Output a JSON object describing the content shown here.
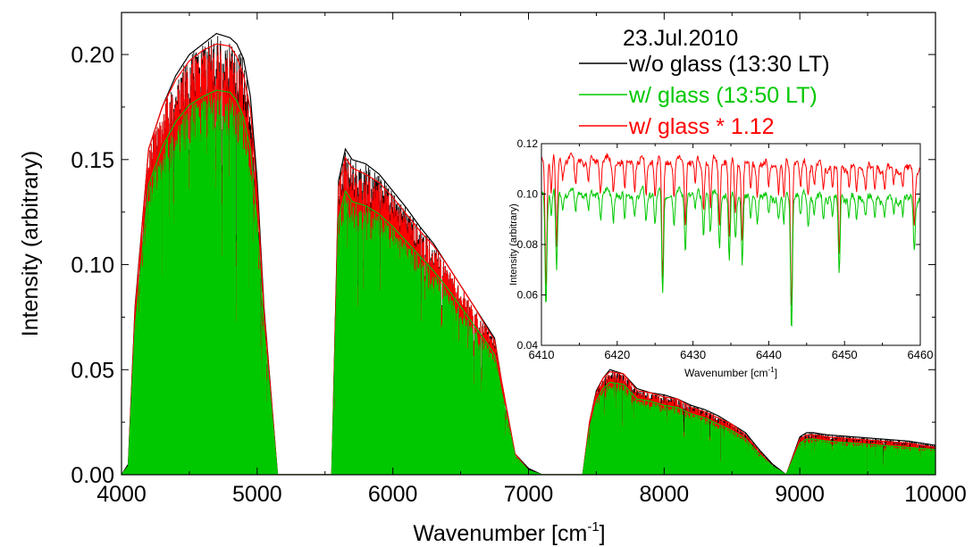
{
  "chart_data": [
    {
      "type": "line",
      "annotation": "23.Jul.2010",
      "xlabel": "Wavenumber [cm",
      "xlabel_sup": "-1",
      "xlabel_tail": "]",
      "ylabel": "Intensity (arbitrary)",
      "xlim": [
        4000,
        10000
      ],
      "ylim": [
        0,
        0.22
      ],
      "xticks": [
        4000,
        5000,
        6000,
        7000,
        8000,
        9000,
        10000
      ],
      "xtick_labels": [
        "4000",
        "5000",
        "6000",
        "7000",
        "8000",
        "9000",
        "10000"
      ],
      "yticks": [
        0,
        0.05,
        0.1,
        0.15,
        0.2
      ],
      "ytick_labels": [
        "0.00",
        "0.05",
        "0.10",
        "0.15",
        "0.20"
      ],
      "legend": "top-right",
      "grid": false,
      "series": [
        {
          "name": "w/o glass (13:30 LT)",
          "color": "#000000",
          "envelope_x": [
            4000,
            4050,
            4100,
            4200,
            4300,
            4400,
            4500,
            4600,
            4700,
            4800,
            4850,
            4900,
            4950,
            5000,
            5050,
            5100,
            5150,
            5200,
            5550,
            5600,
            5650,
            5700,
            5800,
            5900,
            6000,
            6100,
            6200,
            6300,
            6400,
            6500,
            6600,
            6700,
            6750,
            6800,
            6900,
            7000,
            7100,
            7200,
            7400,
            7450,
            7500,
            7550,
            7600,
            7700,
            7800,
            7900,
            8000,
            8100,
            8200,
            8300,
            8400,
            8500,
            8600,
            8700,
            8800,
            8900,
            9000,
            9050,
            9100,
            9200,
            9400,
            9600,
            9800,
            10000
          ],
          "envelope_y": [
            0.0,
            0.005,
            0.08,
            0.155,
            0.175,
            0.19,
            0.2,
            0.205,
            0.21,
            0.208,
            0.205,
            0.198,
            0.18,
            0.14,
            0.08,
            0.04,
            0.0,
            0.0,
            0.0,
            0.14,
            0.155,
            0.15,
            0.148,
            0.143,
            0.135,
            0.127,
            0.118,
            0.11,
            0.1,
            0.09,
            0.08,
            0.07,
            0.065,
            0.045,
            0.01,
            0.003,
            0.0,
            0.0,
            0.0,
            0.025,
            0.04,
            0.046,
            0.05,
            0.048,
            0.041,
            0.039,
            0.038,
            0.036,
            0.033,
            0.031,
            0.028,
            0.024,
            0.02,
            0.012,
            0.005,
            0.0,
            0.018,
            0.02,
            0.02,
            0.019,
            0.018,
            0.017,
            0.016,
            0.014
          ]
        },
        {
          "name": "w/ glass (13:50 LT)",
          "color": "#00c800",
          "envelope_x": [
            4000,
            4050,
            4100,
            4200,
            4300,
            4400,
            4500,
            4600,
            4700,
            4800,
            4850,
            4900,
            4950,
            5000,
            5050,
            5100,
            5150,
            5200,
            5550,
            5600,
            5650,
            5700,
            5800,
            5900,
            6000,
            6100,
            6200,
            6300,
            6400,
            6500,
            6600,
            6700,
            6750,
            6800,
            6900,
            7000,
            7100,
            7200,
            7400,
            7450,
            7500,
            7550,
            7600,
            7700,
            7800,
            7900,
            8000,
            8100,
            8200,
            8300,
            8400,
            8500,
            8600,
            8700,
            8800,
            8900,
            9000,
            9050,
            9100,
            9200,
            9400,
            9600,
            9800,
            10000
          ],
          "envelope_y": [
            0.0,
            0.004,
            0.07,
            0.138,
            0.156,
            0.168,
            0.176,
            0.18,
            0.183,
            0.182,
            0.178,
            0.17,
            0.155,
            0.12,
            0.07,
            0.035,
            0.0,
            0.0,
            0.0,
            0.122,
            0.135,
            0.13,
            0.128,
            0.124,
            0.118,
            0.111,
            0.104,
            0.097,
            0.089,
            0.08,
            0.071,
            0.062,
            0.057,
            0.04,
            0.009,
            0.002,
            0.0,
            0.0,
            0.0,
            0.022,
            0.035,
            0.041,
            0.044,
            0.043,
            0.036,
            0.035,
            0.033,
            0.032,
            0.029,
            0.027,
            0.024,
            0.021,
            0.017,
            0.01,
            0.004,
            0.0,
            0.015,
            0.017,
            0.017,
            0.016,
            0.015,
            0.014,
            0.013,
            0.012
          ]
        },
        {
          "name": "w/ glass * 1.12",
          "color": "#ff0000",
          "envelope_x": [
            4000,
            4050,
            4100,
            4200,
            4300,
            4400,
            4500,
            4600,
            4700,
            4800,
            4850,
            4900,
            4950,
            5000,
            5050,
            5100,
            5150,
            5200,
            5550,
            5600,
            5650,
            5700,
            5800,
            5900,
            6000,
            6100,
            6200,
            6300,
            6400,
            6500,
            6600,
            6700,
            6750,
            6800,
            6900,
            7000,
            7100,
            7200,
            7400,
            7450,
            7500,
            7550,
            7600,
            7700,
            7800,
            7900,
            8000,
            8100,
            8200,
            8300,
            8400,
            8500,
            8600,
            8700,
            8800,
            8900,
            9000,
            9050,
            9100,
            9200,
            9400,
            9600,
            9800,
            10000
          ],
          "envelope_y": [
            0.0,
            0.004,
            0.078,
            0.155,
            0.175,
            0.188,
            0.197,
            0.202,
            0.205,
            0.204,
            0.199,
            0.19,
            0.174,
            0.134,
            0.078,
            0.039,
            0.0,
            0.0,
            0.0,
            0.137,
            0.151,
            0.146,
            0.143,
            0.139,
            0.132,
            0.124,
            0.116,
            0.109,
            0.1,
            0.09,
            0.08,
            0.069,
            0.064,
            0.045,
            0.01,
            0.002,
            0.0,
            0.0,
            0.0,
            0.025,
            0.039,
            0.046,
            0.049,
            0.048,
            0.04,
            0.039,
            0.037,
            0.036,
            0.032,
            0.03,
            0.027,
            0.024,
            0.019,
            0.011,
            0.004,
            0.0,
            0.017,
            0.019,
            0.019,
            0.018,
            0.017,
            0.016,
            0.015,
            0.013
          ]
        }
      ]
    },
    {
      "type": "line",
      "xlabel": "Wavenumber [cm",
      "xlabel_sup": "-1",
      "xlabel_tail": "]",
      "ylabel": "Intensity (arbitrary)",
      "xlim": [
        6410,
        6460
      ],
      "ylim": [
        0.04,
        0.12
      ],
      "xticks": [
        6410,
        6420,
        6430,
        6440,
        6450,
        6460
      ],
      "xtick_labels": [
        "6410",
        "6420",
        "6430",
        "6440",
        "6450",
        "6460"
      ],
      "yticks": [
        0.04,
        0.06,
        0.08,
        0.1,
        0.12
      ],
      "ytick_labels": [
        "0.04",
        "0.06",
        "0.08",
        "0.10",
        "0.12"
      ],
      "grid": false,
      "series": [
        {
          "name": "w/ glass * 1.12",
          "color": "#ff0000",
          "baseline": [
            [
              6410,
              0.114
            ],
            [
              6420,
              0.113
            ],
            [
              6430,
              0.113
            ],
            [
              6440,
              0.112
            ],
            [
              6450,
              0.111
            ],
            [
              6460,
              0.11
            ]
          ],
          "absorption_lines": [
            [
              6410.6,
              0.062
            ],
            [
              6411.3,
              0.1
            ],
            [
              6412.0,
              0.08
            ],
            [
              6412.8,
              0.106
            ],
            [
              6414.5,
              0.104
            ],
            [
              6416.2,
              0.103
            ],
            [
              6417.8,
              0.102
            ],
            [
              6419.5,
              0.101
            ],
            [
              6421.0,
              0.1
            ],
            [
              6422.3,
              0.102
            ],
            [
              6423.8,
              0.1
            ],
            [
              6425.0,
              0.1
            ],
            [
              6426.0,
              0.066
            ],
            [
              6427.5,
              0.1
            ],
            [
              6429.0,
              0.088
            ],
            [
              6430.3,
              0.103
            ],
            [
              6431.4,
              0.095
            ],
            [
              6432.3,
              0.095
            ],
            [
              6433.5,
              0.09
            ],
            [
              6434.8,
              0.083
            ],
            [
              6435.6,
              0.092
            ],
            [
              6436.5,
              0.08
            ],
            [
              6437.6,
              0.1
            ],
            [
              6438.5,
              0.1
            ],
            [
              6440.0,
              0.102
            ],
            [
              6441.3,
              0.1
            ],
            [
              6442.0,
              0.098
            ],
            [
              6443.0,
              0.055
            ],
            [
              6444.2,
              0.102
            ],
            [
              6445.2,
              0.1
            ],
            [
              6446.0,
              0.103
            ],
            [
              6447.2,
              0.1
            ],
            [
              6448.4,
              0.102
            ],
            [
              6449.3,
              0.075
            ],
            [
              6450.6,
              0.102
            ],
            [
              6451.6,
              0.1
            ],
            [
              6452.8,
              0.102
            ],
            [
              6454.0,
              0.1
            ],
            [
              6455.3,
              0.101
            ],
            [
              6456.5,
              0.103
            ],
            [
              6457.7,
              0.102
            ],
            [
              6459.2,
              0.088
            ]
          ]
        },
        {
          "name": "w/ glass (13:50 LT)",
          "color": "#00c800",
          "baseline": [
            [
              6410,
              0.101
            ],
            [
              6420,
              0.1
            ],
            [
              6430,
              0.1
            ],
            [
              6440,
              0.099
            ],
            [
              6450,
              0.099
            ],
            [
              6460,
              0.098
            ]
          ],
          "absorption_lines": [
            [
              6410.6,
              0.056
            ],
            [
              6411.3,
              0.09
            ],
            [
              6412.0,
              0.07
            ],
            [
              6412.8,
              0.095
            ],
            [
              6414.5,
              0.093
            ],
            [
              6416.2,
              0.092
            ],
            [
              6417.8,
              0.091
            ],
            [
              6419.5,
              0.09
            ],
            [
              6421.0,
              0.089
            ],
            [
              6422.3,
              0.091
            ],
            [
              6423.8,
              0.089
            ],
            [
              6425.0,
              0.089
            ],
            [
              6426.0,
              0.059
            ],
            [
              6427.5,
              0.089
            ],
            [
              6429.0,
              0.079
            ],
            [
              6430.3,
              0.092
            ],
            [
              6431.4,
              0.085
            ],
            [
              6432.3,
              0.085
            ],
            [
              6433.5,
              0.08
            ],
            [
              6434.8,
              0.074
            ],
            [
              6435.6,
              0.082
            ],
            [
              6436.5,
              0.072
            ],
            [
              6437.6,
              0.089
            ],
            [
              6438.5,
              0.089
            ],
            [
              6440.0,
              0.091
            ],
            [
              6441.3,
              0.089
            ],
            [
              6442.0,
              0.088
            ],
            [
              6443.0,
              0.048
            ],
            [
              6444.2,
              0.091
            ],
            [
              6445.2,
              0.089
            ],
            [
              6446.0,
              0.092
            ],
            [
              6447.2,
              0.089
            ],
            [
              6448.4,
              0.091
            ],
            [
              6449.3,
              0.067
            ],
            [
              6450.6,
              0.091
            ],
            [
              6451.6,
              0.089
            ],
            [
              6452.8,
              0.091
            ],
            [
              6454.0,
              0.089
            ],
            [
              6455.3,
              0.09
            ],
            [
              6456.5,
              0.092
            ],
            [
              6457.7,
              0.091
            ],
            [
              6459.2,
              0.078
            ]
          ]
        }
      ]
    }
  ]
}
